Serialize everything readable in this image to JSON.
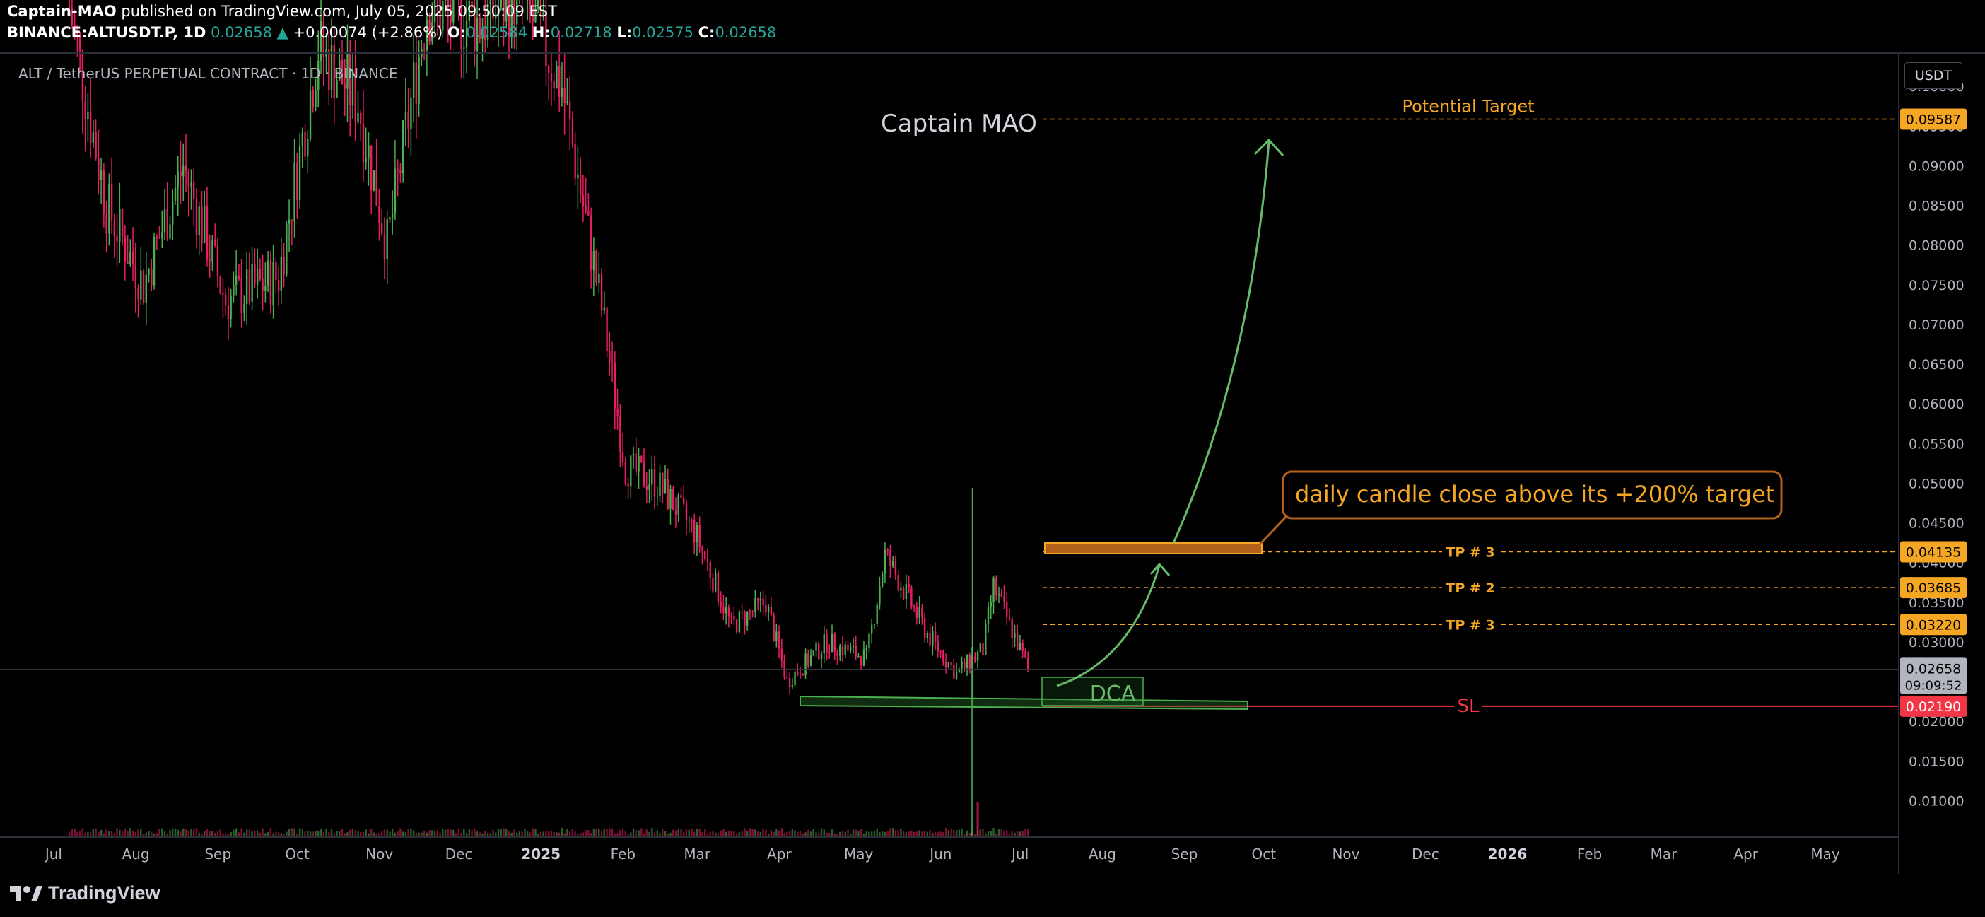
{
  "header": {
    "author": "Captain-MAO",
    "published": " published on TradingView.com, July 05, 2025 09:50:09 EST",
    "symbol": "BINANCE:ALTUSDT.P, 1D",
    "last": "0.02658",
    "change": "+0.00074 (+2.86%)",
    "o_label": "O:",
    "o": "0.02584",
    "h_label": "H:",
    "h": "0.02718",
    "l_label": "L:",
    "l": "0.02575",
    "c_label": "C:",
    "c": "0.02658"
  },
  "pane_title": "ALT / TetherUS PERPETUAL CONTRACT · 1D · BINANCE",
  "currency": "USDT",
  "brand": "TradingView",
  "colors": {
    "up": "#26a69a",
    "down": "#ef5350",
    "candle_up": "#4caf50",
    "candle_down": "#e91e63",
    "target": "#f5a623",
    "sl": "#f23645",
    "green_line": "#4caf50",
    "text_axis": "#b2b5be"
  },
  "chart_data": {
    "type": "candlestick",
    "ylim": [
      0.0055,
      0.1042
    ],
    "y_ticks": [
      "0.10000",
      "0.09500",
      "0.09000",
      "0.08500",
      "0.08000",
      "0.07500",
      "0.07000",
      "0.06500",
      "0.06000",
      "0.05500",
      "0.05000",
      "0.04500",
      "0.04000",
      "0.03500",
      "0.03000",
      "0.02500",
      "0.02000",
      "0.01500",
      "0.01000"
    ],
    "x_labels": [
      "Jul",
      "Aug",
      "Sep",
      "Oct",
      "Nov",
      "Dec",
      "2025",
      "Feb",
      "Mar",
      "Apr",
      "May",
      "Jun",
      "Jul",
      "Aug",
      "Sep",
      "Oct",
      "Nov",
      "Dec",
      "2026",
      "Feb",
      "Mar",
      "Apr",
      "May"
    ],
    "price_path": [
      [
        "2024-07-08",
        0.11
      ],
      [
        "2024-07-22",
        0.085
      ],
      [
        "2024-08-05",
        0.075
      ],
      [
        "2024-08-20",
        0.09
      ],
      [
        "2024-09-05",
        0.073
      ],
      [
        "2024-09-25",
        0.076
      ],
      [
        "2024-10-10",
        0.105
      ],
      [
        "2024-10-25",
        0.098
      ],
      [
        "2024-11-05",
        0.08
      ],
      [
        "2024-11-20",
        0.11
      ],
      [
        "2024-12-10",
        0.108
      ],
      [
        "2024-12-25",
        0.112
      ],
      [
        "2025-01-10",
        0.1
      ],
      [
        "2025-01-25",
        0.072
      ],
      [
        "2025-02-03",
        0.052
      ],
      [
        "2025-02-15",
        0.05
      ],
      [
        "2025-03-01",
        0.044
      ],
      [
        "2025-03-15",
        0.032
      ],
      [
        "2025-03-28",
        0.035
      ],
      [
        "2025-04-05",
        0.025
      ],
      [
        "2025-04-20",
        0.03
      ],
      [
        "2025-05-05",
        0.028
      ],
      [
        "2025-05-12",
        0.041
      ],
      [
        "2025-05-28",
        0.031
      ],
      [
        "2025-06-08",
        0.026
      ],
      [
        "2025-06-18",
        0.029
      ],
      [
        "2025-06-22",
        0.037
      ],
      [
        "2025-07-05",
        0.0266
      ]
    ],
    "last_price": 0.02658,
    "countdown": "09:09:52",
    "levels": [
      {
        "label": "Potential Target",
        "value": 0.09587,
        "tag": "0.09587"
      },
      {
        "label": "TP # 3",
        "value": 0.04135,
        "tag": "0.04135"
      },
      {
        "label": "TP # 2",
        "value": 0.03685,
        "tag": "0.03685"
      },
      {
        "label": "TP # 3",
        "value": 0.0322,
        "tag": "0.03220"
      },
      {
        "label": "SL",
        "value": 0.0219,
        "tag": "0.02190"
      }
    ],
    "annotations": {
      "watermark": "Captain MAO",
      "callout": "daily candle  close above its +200% target",
      "dca": "DCA"
    }
  }
}
